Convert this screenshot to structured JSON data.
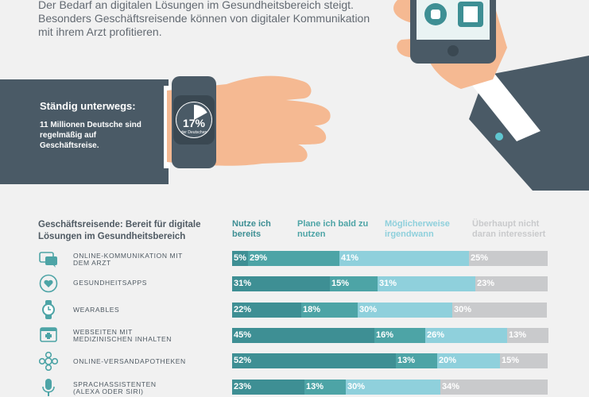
{
  "intro_text": "Der Bedarf an digitalen Lösungen im Gesundheitsbereich steigt. Besonders Geschäftsreisende können von digitaler Kommunikation mit ihrem Arzt profitieren.",
  "travel": {
    "title": "Ständig unterwegs:",
    "text": "11 Millionen Deutsche sind regelmäßig auf Geschäftsreise."
  },
  "watch": {
    "value_label": "17%",
    "value": 17,
    "caption": "der Deutschen"
  },
  "colors": {
    "segment_1": "#3e8f94",
    "segment_2": "#4da4a6",
    "segment_3": "#8fd0dc",
    "segment_4": "#c9cacc",
    "sleeve": "#4a5a66",
    "skin": "#f5b992"
  },
  "chart_data": {
    "type": "bar",
    "orientation": "horizontal",
    "stacked": true,
    "title": "Geschäftsreisende: Bereit für digitale Lösungen im Gesundheitsbereich",
    "legend_position": "top",
    "series_names": [
      "Nutze ich bereits",
      "Plane ich bald zu nutzen",
      "Möglicherweise irgendwann",
      "Überhaupt nicht daran interessiert"
    ],
    "rows": [
      {
        "label": "ONLINE-KOMMUNIKATION MIT DEM ARZT",
        "icon": "chat-icon",
        "values": [
          5,
          29,
          41,
          25
        ],
        "value_labels": [
          "5%",
          "29%",
          "41%",
          "25%"
        ]
      },
      {
        "label": "GESUNDHEITSAPPS",
        "icon": "heart-icon",
        "values": [
          31,
          15,
          31,
          23
        ],
        "value_labels": [
          "31%",
          "15%",
          "31%",
          "23%"
        ]
      },
      {
        "label": "WEARABLES",
        "icon": "watch-icon",
        "values": [
          22,
          18,
          30,
          30
        ],
        "value_labels": [
          "22%",
          "18%",
          "30%",
          "30%"
        ]
      },
      {
        "label": "WEBSEITEN MIT MEDIZINISCHEN INHALTEN",
        "icon": "medical-cross-icon",
        "values": [
          45,
          16,
          26,
          13
        ],
        "value_labels": [
          "45%",
          "16%",
          "26%",
          "13%"
        ]
      },
      {
        "label": "ONLINE-VERSANDAPOTHEKEN",
        "icon": "pill-icon",
        "values": [
          52,
          13,
          20,
          15
        ],
        "value_labels": [
          "52%",
          "13%",
          "20%",
          "15%"
        ]
      },
      {
        "label": "SPRACHASSISTENTEN (ALEXA ODER SIRI)",
        "icon": "microphone-icon",
        "values": [
          23,
          13,
          30,
          34
        ],
        "value_labels": [
          "23%",
          "13%",
          "30%",
          "34%"
        ]
      }
    ]
  }
}
